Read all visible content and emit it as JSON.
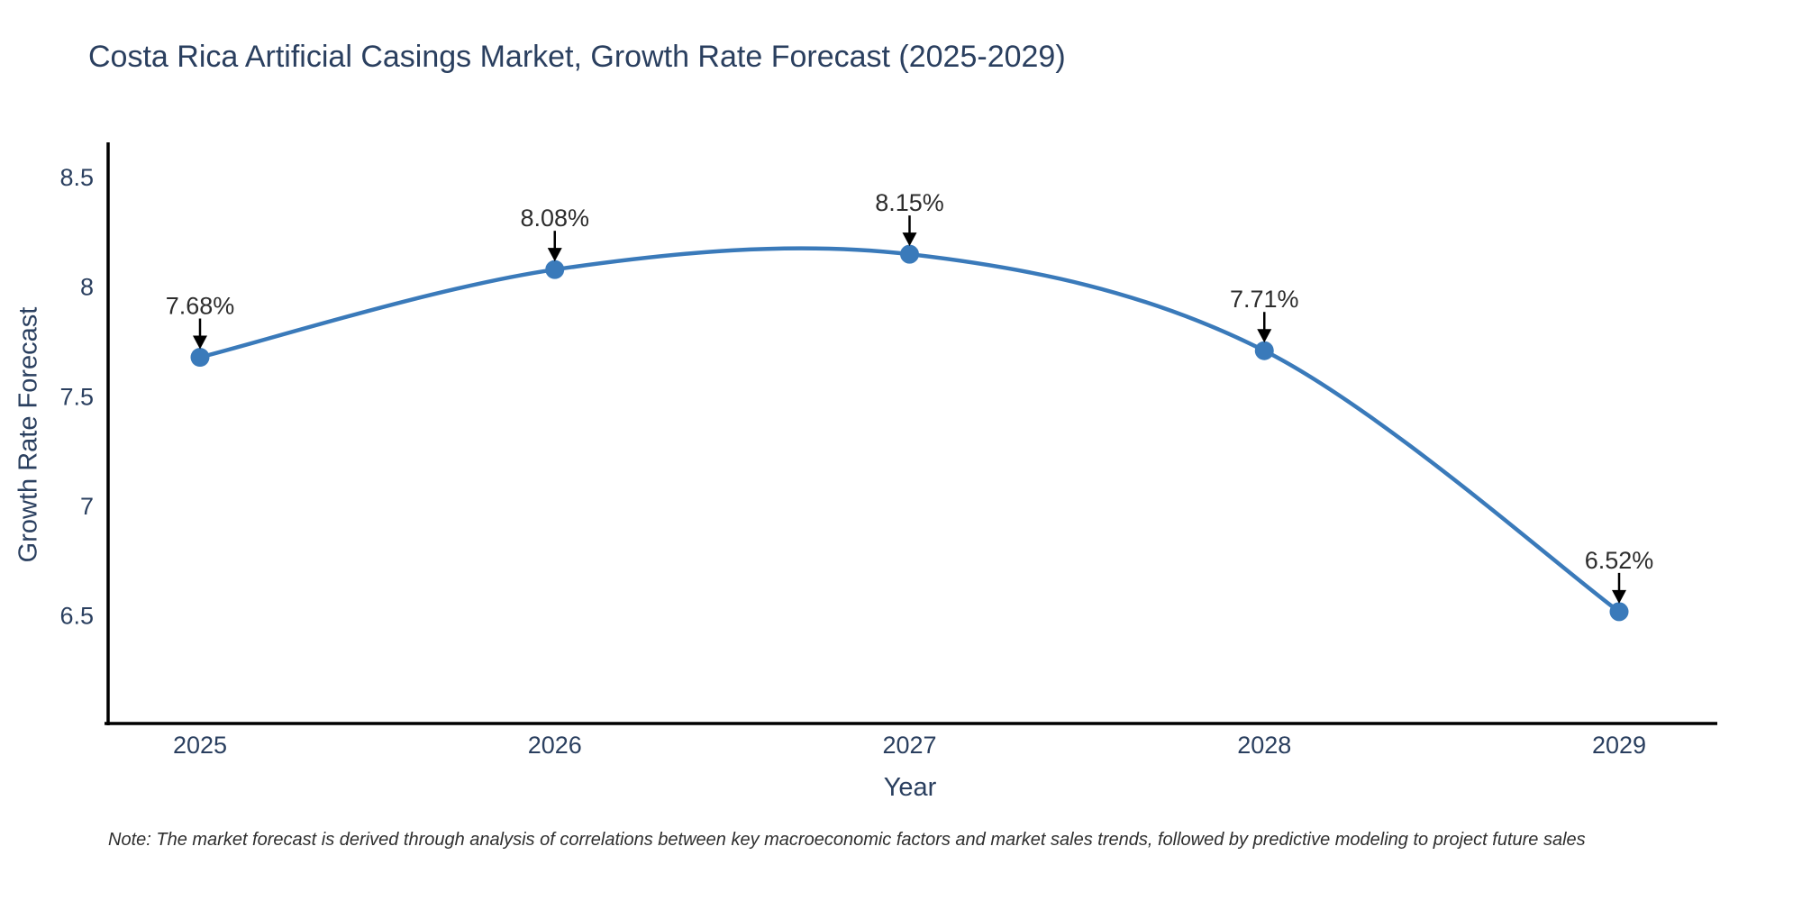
{
  "title": "Costa Rica Artificial Casings Market, Growth Rate Forecast (2025-2029)",
  "note": "Note: The market forecast is derived through analysis of correlations between key macroeconomic factors and market sales trends, followed by predictive modeling to project future sales",
  "chart_data": {
    "type": "line",
    "title": "Costa Rica Artificial Casings Market, Growth Rate Forecast (2025-2029)",
    "xlabel": "Year",
    "ylabel": "Growth Rate Forecast",
    "categories": [
      "2025",
      "2026",
      "2027",
      "2028",
      "2029"
    ],
    "values": [
      7.68,
      8.08,
      8.15,
      7.71,
      6.52
    ],
    "annotations": [
      "7.68%",
      "8.08%",
      "8.15%",
      "7.71%",
      "6.52%"
    ],
    "yticks": [
      8.5,
      8,
      7.5,
      7,
      6.5
    ],
    "ylim": [
      6.01,
      8.66
    ],
    "line_shape": "spline",
    "grid": false,
    "legend": "none",
    "colors": {
      "line": "#3a7aba",
      "marker": "#3a7aba",
      "axis": "#000000",
      "tick_text": "#2a3f5f",
      "annotation_text": "#2d2d2d",
      "arrow": "#000000"
    }
  }
}
